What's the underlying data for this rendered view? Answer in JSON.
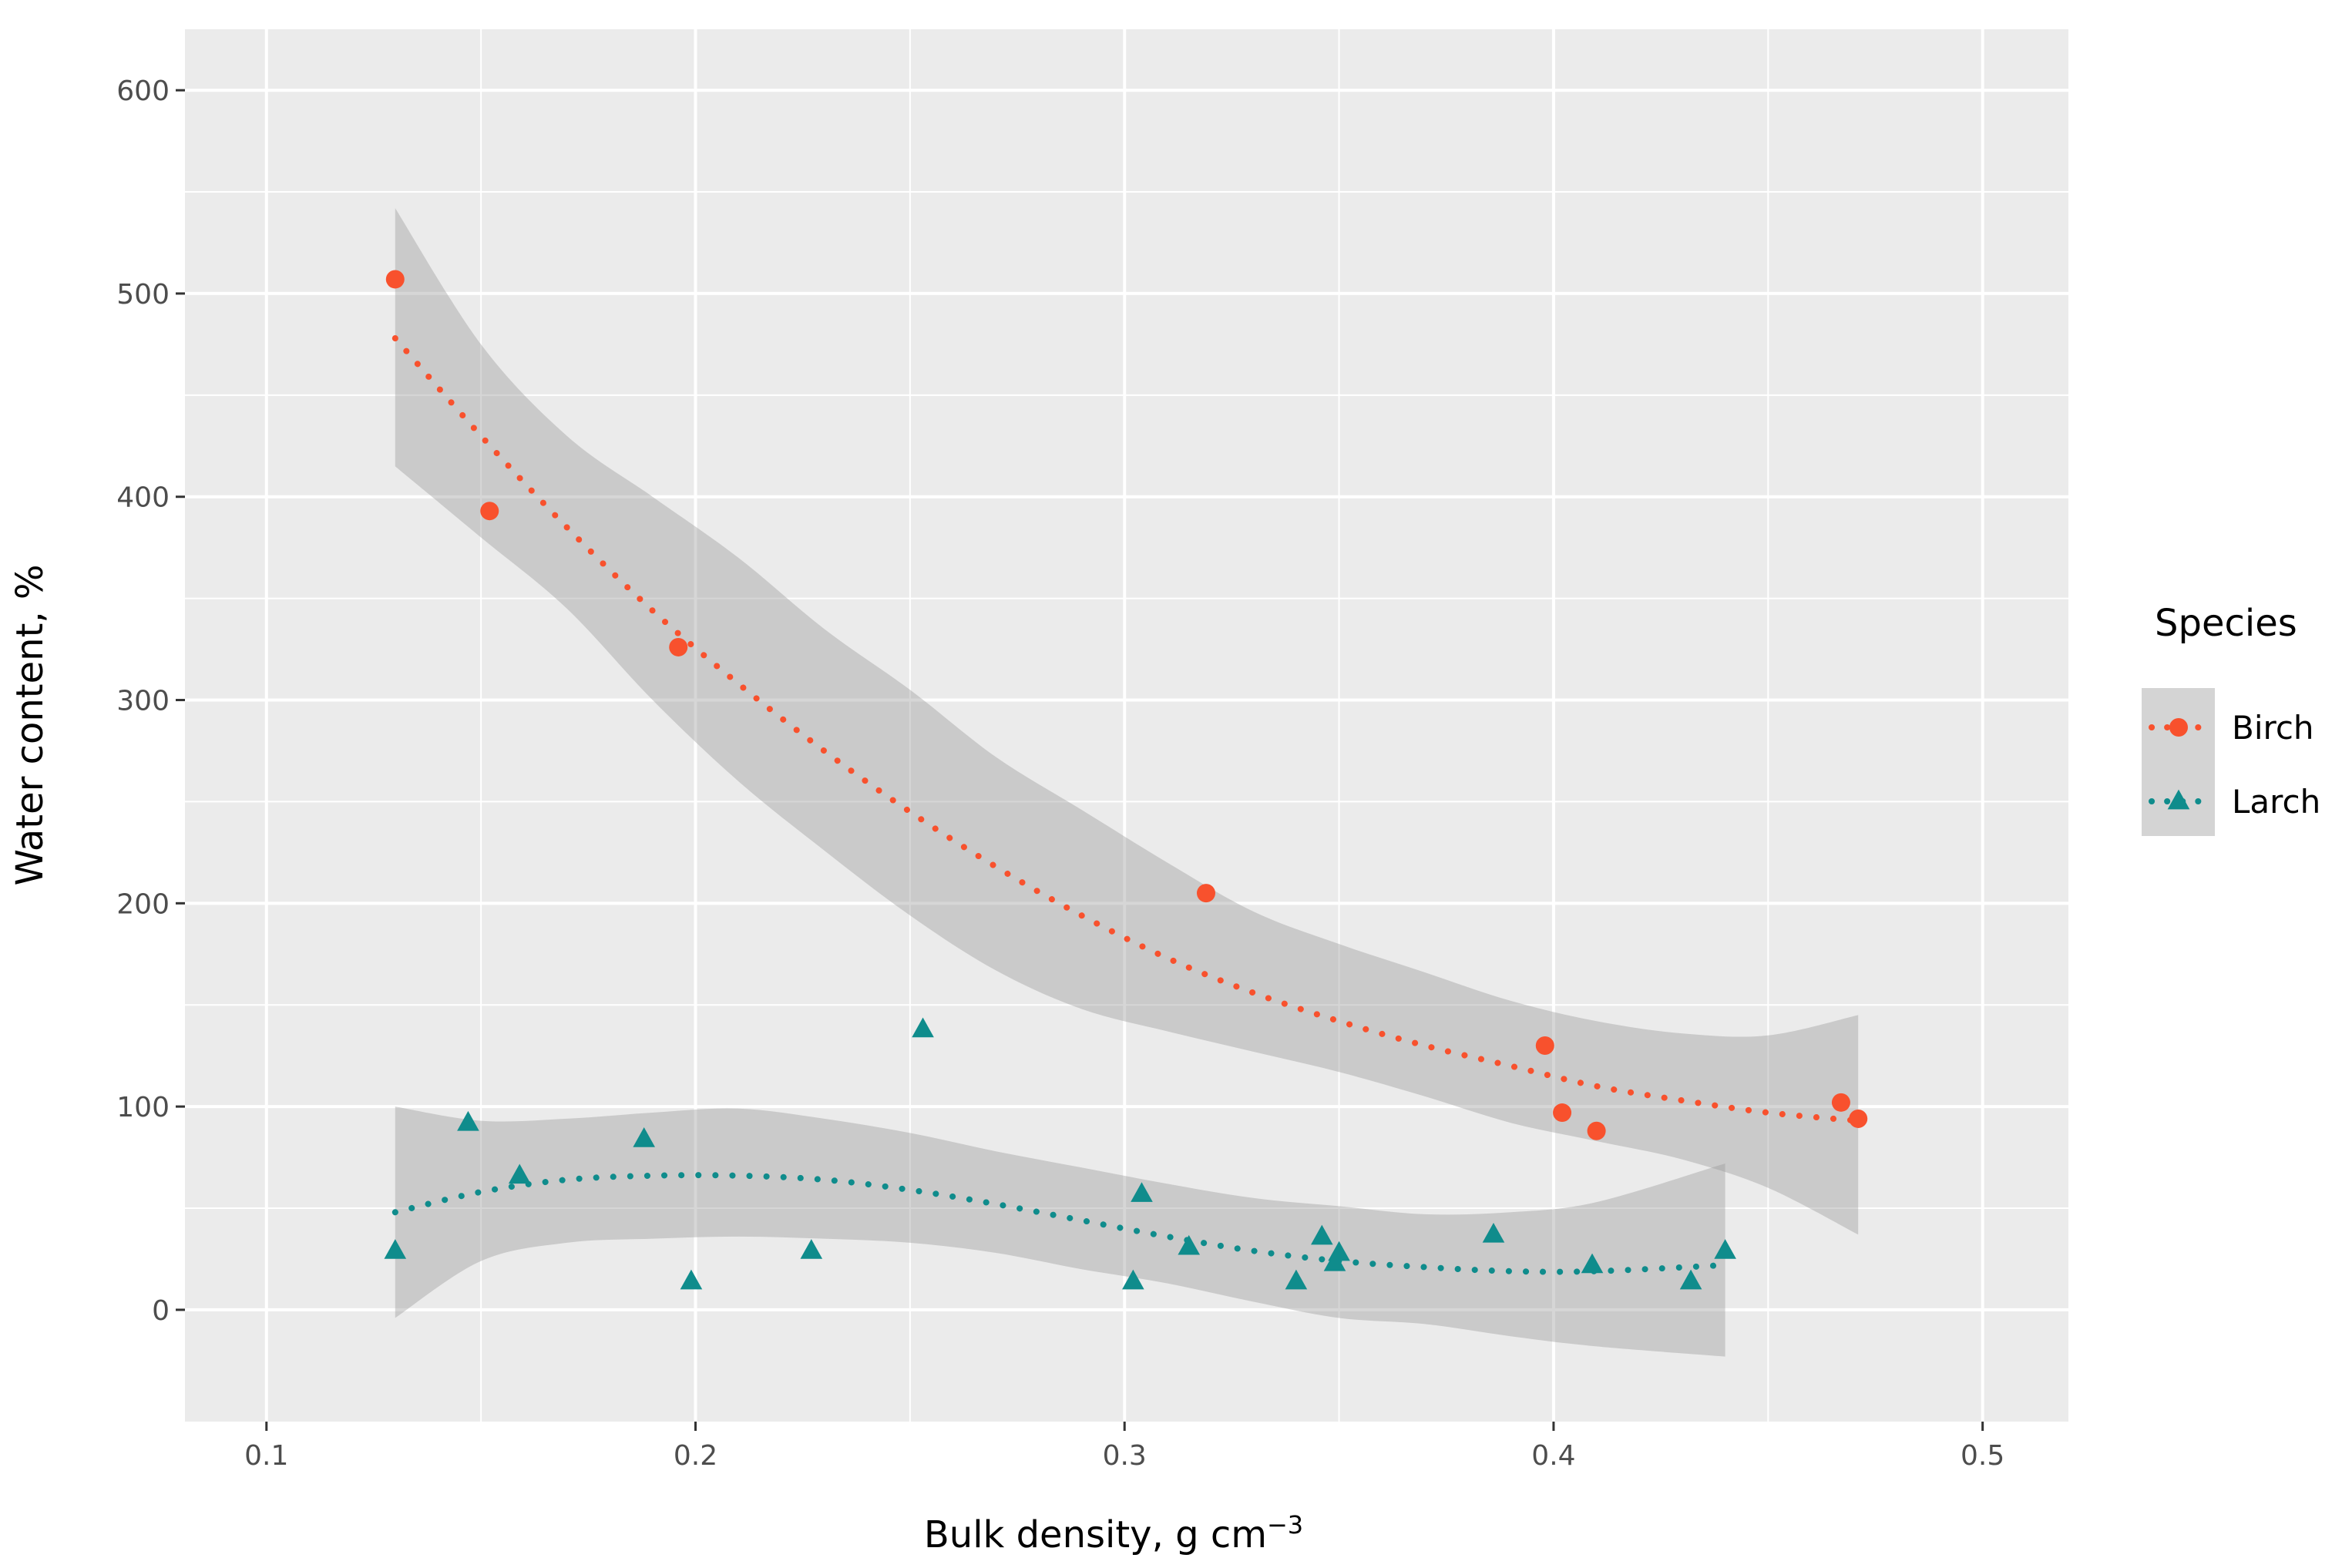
{
  "chart_data": {
    "type": "scatter",
    "title": "",
    "xlabel": "Bulk density, g cm",
    "xlabel_superscript": "−3",
    "ylabel": "Water content, %",
    "xlim": [
      0.081,
      0.52
    ],
    "ylim": [
      -55,
      630
    ],
    "x_ticks": [
      0.1,
      0.2,
      0.3,
      0.4,
      0.5
    ],
    "x_tick_labels": [
      "0.1",
      "0.2",
      "0.3",
      "0.4",
      "0.5"
    ],
    "y_ticks": [
      0,
      100,
      200,
      300,
      400,
      500,
      600
    ],
    "y_tick_labels": [
      "0",
      "100",
      "200",
      "300",
      "400",
      "500",
      "600"
    ],
    "grid": true,
    "legend": {
      "title": "Species",
      "position": "right"
    },
    "series": [
      {
        "name": "Birch",
        "marker": "circle",
        "color": "#F8512D",
        "points": [
          {
            "x": 0.13,
            "y": 507
          },
          {
            "x": 0.152,
            "y": 393
          },
          {
            "x": 0.196,
            "y": 326
          },
          {
            "x": 0.319,
            "y": 205
          },
          {
            "x": 0.398,
            "y": 130
          },
          {
            "x": 0.402,
            "y": 97
          },
          {
            "x": 0.41,
            "y": 88
          },
          {
            "x": 0.467,
            "y": 102
          },
          {
            "x": 0.471,
            "y": 94
          }
        ],
        "fit": {
          "x": [
            0.13,
            0.15,
            0.17,
            0.19,
            0.21,
            0.23,
            0.25,
            0.27,
            0.29,
            0.31,
            0.33,
            0.35,
            0.37,
            0.39,
            0.41,
            0.43,
            0.45,
            0.471
          ],
          "y": [
            478,
            430,
            385,
            344,
            308,
            275,
            245,
            218,
            194,
            173,
            156,
            142,
            130,
            120,
            110,
            103,
            97,
            93
          ],
          "lower": [
            415,
            380,
            345,
            300,
            260,
            226,
            194,
            167,
            148,
            137,
            127,
            117,
            105,
            92,
            83,
            74,
            60,
            37
          ],
          "upper": [
            542,
            475,
            430,
            400,
            370,
            335,
            305,
            272,
            246,
            220,
            196,
            180,
            166,
            152,
            142,
            136,
            135,
            145
          ]
        }
      },
      {
        "name": "Larch",
        "marker": "triangle",
        "color": "#0F8C8C",
        "points": [
          {
            "x": 0.13,
            "y": 29
          },
          {
            "x": 0.147,
            "y": 92
          },
          {
            "x": 0.159,
            "y": 66
          },
          {
            "x": 0.188,
            "y": 84
          },
          {
            "x": 0.199,
            "y": 14
          },
          {
            "x": 0.227,
            "y": 29
          },
          {
            "x": 0.253,
            "y": 138
          },
          {
            "x": 0.302,
            "y": 14
          },
          {
            "x": 0.304,
            "y": 57
          },
          {
            "x": 0.315,
            "y": 31
          },
          {
            "x": 0.34,
            "y": 14
          },
          {
            "x": 0.346,
            "y": 36
          },
          {
            "x": 0.349,
            "y": 23
          },
          {
            "x": 0.35,
            "y": 28
          },
          {
            "x": 0.386,
            "y": 37
          },
          {
            "x": 0.409,
            "y": 22
          },
          {
            "x": 0.432,
            "y": 14
          },
          {
            "x": 0.44,
            "y": 29
          }
        ],
        "fit": {
          "x": [
            0.13,
            0.15,
            0.17,
            0.19,
            0.21,
            0.23,
            0.25,
            0.27,
            0.29,
            0.31,
            0.33,
            0.35,
            0.37,
            0.39,
            0.41,
            0.44
          ],
          "y": [
            48,
            58,
            64,
            66,
            66,
            64,
            59,
            52,
            44,
            36,
            29,
            24,
            21,
            19,
            19,
            22
          ],
          "lower": [
            -4,
            24,
            33,
            35,
            36,
            35,
            33,
            28,
            20,
            13,
            4,
            -4,
            -7,
            -13,
            -18,
            -23
          ],
          "upper": [
            100,
            93,
            94,
            97,
            99,
            94,
            87,
            78,
            70,
            62,
            55,
            51,
            47,
            48,
            53,
            72
          ]
        }
      }
    ]
  }
}
